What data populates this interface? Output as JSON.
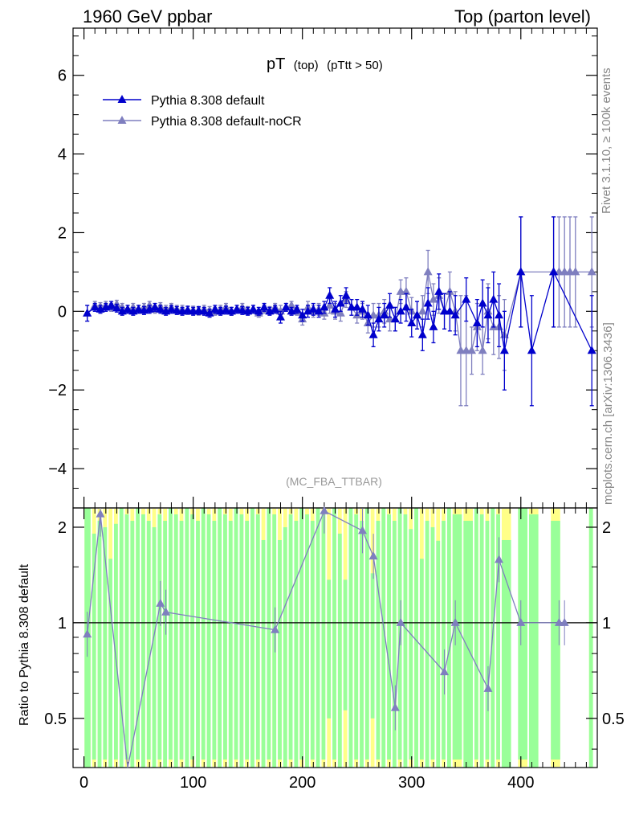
{
  "header": {
    "left": "1960 GeV ppbar",
    "right": "Top (parton level)"
  },
  "plot_title": {
    "main": "pT",
    "sub1": "(top)",
    "sub2": "(pTtt > 50)"
  },
  "side_text": {
    "rivet": "Rivet 3.1.10, ≥ 100k events",
    "mcplots": "mcplots.cern.ch [arXiv:1306.3436]"
  },
  "analysis_ref": "(MC_FBA_TTBAR)",
  "ratio_ylabel": "Ratio to Pythia 8.308 default",
  "colors": {
    "default": "#0000cc",
    "noCR": "#7f7fbf",
    "band_green": "#99ff99",
    "band_yellow": "#ffff88"
  },
  "chart_data": {
    "type": "line",
    "title": "pT (top) (pTtt > 50)",
    "main_panel": {
      "xlim": [
        -10,
        470
      ],
      "ylim": [
        -5,
        7.2
      ],
      "yticks": [
        "−4",
        "−2",
        "0",
        "2",
        "4",
        "6"
      ],
      "ytick_values": [
        -4,
        -2,
        0,
        2,
        4,
        6
      ]
    },
    "ratio_panel": {
      "ylim": [
        0.35,
        2.3
      ],
      "yticks": [
        "0.5",
        "1",
        "2"
      ],
      "ytick_values": [
        0.5,
        1,
        2
      ]
    },
    "xticks": [
      "0",
      "100",
      "200",
      "300",
      "400"
    ],
    "xtick_values": [
      0,
      100,
      200,
      300,
      400
    ],
    "series": [
      {
        "name": "Pythia 8.308 default",
        "color": "#0000cc",
        "x": [
          3,
          10,
          15,
          20,
          25,
          30,
          35,
          40,
          45,
          50,
          55,
          60,
          65,
          70,
          75,
          80,
          85,
          90,
          95,
          100,
          105,
          110,
          115,
          120,
          125,
          130,
          135,
          140,
          145,
          150,
          155,
          160,
          165,
          170,
          175,
          180,
          185,
          190,
          195,
          200,
          205,
          210,
          215,
          220,
          225,
          230,
          235,
          240,
          245,
          250,
          255,
          260,
          265,
          270,
          275,
          280,
          285,
          290,
          295,
          300,
          305,
          310,
          315,
          320,
          325,
          330,
          335,
          340,
          350,
          360,
          365,
          370,
          375,
          380,
          385,
          400,
          410,
          430,
          465
        ],
        "y": [
          -0.05,
          0.1,
          0.05,
          0.1,
          0.15,
          0.08,
          0.0,
          0.05,
          0.0,
          0.05,
          0.02,
          0.05,
          0.1,
          0.05,
          0.0,
          0.05,
          0.02,
          0.0,
          0.03,
          0.0,
          0.02,
          0.0,
          -0.05,
          0.05,
          0.0,
          0.03,
          0.0,
          0.05,
          0.02,
          0.0,
          0.05,
          0.0,
          0.1,
          0.0,
          0.05,
          -0.15,
          0.1,
          0.0,
          0.05,
          -0.1,
          0.0,
          0.05,
          0.0,
          0.1,
          0.4,
          0.05,
          0.2,
          0.4,
          0.1,
          0.1,
          0.05,
          -0.1,
          -0.6,
          -0.2,
          -0.1,
          0.15,
          -0.2,
          0.0,
          0.1,
          -0.3,
          -0.1,
          -0.6,
          0.2,
          -0.4,
          0.5,
          0.0,
          0.0,
          -0.1,
          0.3,
          -0.3,
          0.2,
          -0.1,
          0.3,
          -0.1,
          -1.0,
          1.0,
          -1.0,
          1.0,
          -1.0
        ],
        "err": [
          0.2,
          0.1,
          0.1,
          0.1,
          0.1,
          0.1,
          0.1,
          0.1,
          0.1,
          0.1,
          0.1,
          0.1,
          0.1,
          0.1,
          0.1,
          0.1,
          0.1,
          0.1,
          0.1,
          0.1,
          0.1,
          0.1,
          0.1,
          0.1,
          0.1,
          0.1,
          0.1,
          0.1,
          0.1,
          0.1,
          0.1,
          0.1,
          0.1,
          0.1,
          0.1,
          0.15,
          0.1,
          0.1,
          0.1,
          0.15,
          0.15,
          0.15,
          0.15,
          0.15,
          0.2,
          0.2,
          0.2,
          0.2,
          0.2,
          0.2,
          0.2,
          0.25,
          0.3,
          0.3,
          0.3,
          0.3,
          0.3,
          0.3,
          0.35,
          0.35,
          0.35,
          0.4,
          0.4,
          0.4,
          0.45,
          0.45,
          0.5,
          0.5,
          0.55,
          0.6,
          0.6,
          0.7,
          0.7,
          0.8,
          1.0,
          1.4,
          1.4,
          1.4,
          1.4
        ]
      },
      {
        "name": "Pythia 8.308 default-noCR",
        "color": "#7f7fbf",
        "x": [
          3,
          10,
          15,
          20,
          25,
          30,
          35,
          40,
          45,
          50,
          55,
          60,
          65,
          70,
          75,
          80,
          85,
          90,
          95,
          100,
          105,
          110,
          115,
          120,
          125,
          130,
          135,
          140,
          145,
          150,
          155,
          160,
          165,
          170,
          175,
          180,
          185,
          190,
          195,
          200,
          205,
          210,
          215,
          220,
          225,
          230,
          235,
          240,
          245,
          250,
          255,
          260,
          265,
          270,
          275,
          280,
          285,
          290,
          295,
          300,
          305,
          310,
          315,
          320,
          325,
          330,
          335,
          340,
          345,
          350,
          355,
          360,
          365,
          370,
          375,
          380,
          385,
          400,
          430,
          435,
          440,
          445,
          450,
          465
        ],
        "y": [
          -0.05,
          0.15,
          0.12,
          0.15,
          0.1,
          0.18,
          0.1,
          0.05,
          0.1,
          0.05,
          0.1,
          0.15,
          0.05,
          0.12,
          0.05,
          0.1,
          0.05,
          0.05,
          0.02,
          0.03,
          0.0,
          0.05,
          0.02,
          0.0,
          0.05,
          0.1,
          0.0,
          0.05,
          0.1,
          0.02,
          0.05,
          -0.05,
          0.05,
          0.02,
          0.1,
          0.0,
          0.1,
          0.15,
          0.0,
          -0.2,
          0.1,
          0.0,
          0.05,
          -0.05,
          0.15,
          0.0,
          -0.05,
          0.3,
          0.1,
          -0.1,
          0.0,
          -0.3,
          -0.1,
          -0.1,
          0.0,
          -0.2,
          -0.2,
          0.5,
          0.5,
          0.0,
          -0.1,
          0.0,
          1.0,
          0.3,
          0.4,
          0.0,
          0.5,
          0.0,
          -1.0,
          -1.0,
          -1.0,
          -0.4,
          -1.0,
          0.0,
          -0.4,
          -0.4,
          -0.6,
          1.0,
          1.0,
          1.0,
          1.0,
          1.0,
          1.0,
          1.0
        ],
        "err": [
          0.2,
          0.1,
          0.1,
          0.1,
          0.1,
          0.1,
          0.1,
          0.1,
          0.1,
          0.1,
          0.1,
          0.1,
          0.1,
          0.1,
          0.1,
          0.1,
          0.1,
          0.1,
          0.1,
          0.1,
          0.1,
          0.1,
          0.1,
          0.1,
          0.1,
          0.1,
          0.1,
          0.1,
          0.1,
          0.1,
          0.1,
          0.1,
          0.1,
          0.1,
          0.1,
          0.15,
          0.1,
          0.1,
          0.1,
          0.15,
          0.15,
          0.15,
          0.15,
          0.15,
          0.2,
          0.2,
          0.2,
          0.2,
          0.2,
          0.2,
          0.2,
          0.25,
          0.3,
          0.3,
          0.3,
          0.3,
          0.3,
          0.3,
          0.35,
          0.35,
          0.35,
          0.4,
          0.55,
          0.4,
          0.45,
          0.45,
          0.5,
          0.5,
          1.4,
          1.4,
          0.6,
          0.6,
          0.6,
          0.7,
          0.7,
          0.8,
          0.9,
          1.4,
          1.4,
          1.4,
          1.4,
          1.4,
          1.4,
          1.4
        ]
      }
    ],
    "ratio": {
      "name": "Pythia 8.308 default-noCR",
      "x": [
        3,
        15,
        40,
        70,
        75,
        175,
        220,
        255,
        265,
        285,
        290,
        330,
        340,
        370,
        380,
        400,
        435,
        440
      ],
      "y": [
        0.92,
        2.2,
        0.2,
        1.15,
        1.08,
        0.95,
        2.25,
        1.95,
        1.62,
        0.54,
        1.0,
        0.7,
        1.0,
        0.62,
        1.58,
        1.0,
        1.0,
        1.0
      ]
    }
  }
}
